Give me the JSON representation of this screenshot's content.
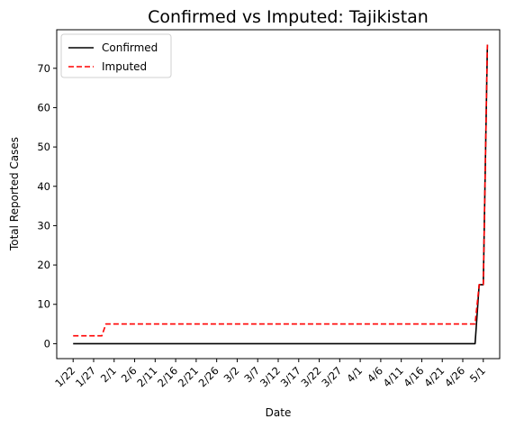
{
  "chart_data": {
    "type": "line",
    "title": "Confirmed vs Imputed: Tajikistan",
    "xlabel": "Date",
    "ylabel": "Total Reported Cases",
    "x_ticks": [
      "1/22",
      "1/27",
      "2/1",
      "2/6",
      "2/11",
      "2/16",
      "2/21",
      "2/26",
      "3/2",
      "3/7",
      "3/12",
      "3/17",
      "3/22",
      "3/27",
      "4/1",
      "4/6",
      "4/11",
      "4/16",
      "4/21",
      "4/26",
      "5/1"
    ],
    "y_ticks": [
      0,
      10,
      20,
      30,
      40,
      50,
      60,
      70
    ],
    "ylim": [
      -3.8,
      79.8
    ],
    "xlim": [
      "1/18",
      "5/5"
    ],
    "x_start": "2020-01-22",
    "legend_position": "top-left",
    "series": [
      {
        "name": "Confirmed",
        "color": "#000000",
        "style": "solid",
        "points": [
          [
            "1/22",
            0
          ],
          [
            "4/29",
            0
          ],
          [
            "4/30",
            15
          ],
          [
            "5/1",
            15
          ],
          [
            "5/2",
            76
          ]
        ]
      },
      {
        "name": "Imputed",
        "color": "#ff0000",
        "style": "dashed",
        "points": [
          [
            "1/22",
            2
          ],
          [
            "1/29",
            2
          ],
          [
            "1/30",
            5
          ],
          [
            "4/29",
            5
          ],
          [
            "4/30",
            15
          ],
          [
            "5/1",
            15
          ],
          [
            "5/2",
            76
          ]
        ]
      }
    ]
  }
}
